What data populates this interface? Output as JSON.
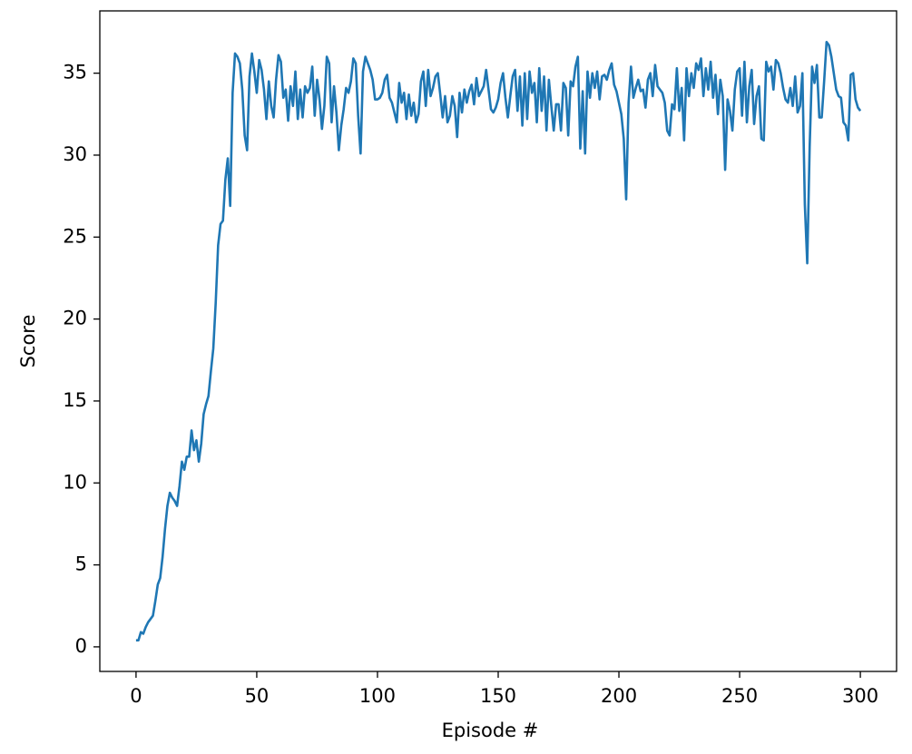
{
  "chart_data": {
    "type": "line",
    "x_label": "Episode #",
    "y_label": "Score",
    "x": [
      0,
      1,
      2,
      3,
      4,
      5,
      6,
      7,
      8,
      9,
      10,
      11,
      12,
      13,
      14,
      15,
      16,
      17,
      18,
      19,
      20,
      21,
      22,
      23,
      24,
      25,
      26,
      27,
      28,
      29,
      30,
      31,
      32,
      33,
      34,
      35,
      36,
      37,
      38,
      39,
      40,
      41,
      42,
      43,
      44,
      45,
      46,
      47,
      48,
      49,
      50,
      51,
      52,
      53,
      54,
      55,
      56,
      57,
      58,
      59,
      60,
      61,
      62,
      63,
      64,
      65,
      66,
      67,
      68,
      69,
      70,
      71,
      72,
      73,
      74,
      75,
      76,
      77,
      78,
      79,
      80,
      81,
      82,
      83,
      84,
      85,
      86,
      87,
      88,
      89,
      90,
      91,
      92,
      93,
      94,
      95,
      96,
      97,
      98,
      99,
      100,
      101,
      102,
      103,
      104,
      105,
      106,
      107,
      108,
      109,
      110,
      111,
      112,
      113,
      114,
      115,
      116,
      117,
      118,
      119,
      120,
      121,
      122,
      123,
      124,
      125,
      126,
      127,
      128,
      129,
      130,
      131,
      132,
      133,
      134,
      135,
      136,
      137,
      138,
      139,
      140,
      141,
      142,
      143,
      144,
      145,
      146,
      147,
      148,
      149,
      150,
      151,
      152,
      153,
      154,
      155,
      156,
      157,
      158,
      159,
      160,
      161,
      162,
      163,
      164,
      165,
      166,
      167,
      168,
      169,
      170,
      171,
      172,
      173,
      174,
      175,
      176,
      177,
      178,
      179,
      180,
      181,
      182,
      183,
      184,
      185,
      186,
      187,
      188,
      189,
      190,
      191,
      192,
      193,
      194,
      195,
      196,
      197,
      198,
      199,
      200,
      201,
      202,
      203,
      204,
      205,
      206,
      207,
      208,
      209,
      210,
      211,
      212,
      213,
      214,
      215,
      216,
      217,
      218,
      219,
      220,
      221,
      222,
      223,
      224,
      225,
      226,
      227,
      228,
      229,
      230,
      231,
      232,
      233,
      234,
      235,
      236,
      237,
      238,
      239,
      240,
      241,
      242,
      243,
      244,
      245,
      246,
      247,
      248,
      249,
      250,
      251,
      252,
      253,
      254,
      255,
      256,
      257,
      258,
      259,
      260,
      261,
      262,
      263,
      264,
      265,
      266,
      267,
      268,
      269,
      270,
      271,
      272,
      273,
      274,
      275,
      276,
      277,
      278,
      279,
      280,
      281,
      282,
      283,
      284,
      285,
      286,
      287,
      288,
      289,
      290,
      291,
      292,
      293,
      294,
      295,
      296,
      297,
      298,
      299,
      300
    ],
    "series": [
      {
        "color": "#1f77b4",
        "values": [
          0.4,
          0.4,
          0.9,
          0.8,
          1.2,
          1.5,
          1.7,
          1.9,
          2.8,
          3.8,
          4.2,
          5.5,
          7.2,
          8.6,
          9.4,
          9.1,
          8.9,
          8.6,
          9.8,
          11.3,
          10.8,
          11.6,
          11.6,
          13.2,
          12.0,
          12.6,
          11.3,
          12.4,
          14.2,
          14.8,
          15.3,
          16.8,
          18.2,
          21.0,
          24.5,
          25.8,
          26.0,
          28.5,
          29.8,
          26.9,
          33.8,
          36.2,
          36.0,
          35.6,
          34.0,
          31.2,
          30.3,
          34.8,
          36.2,
          35.1,
          33.8,
          35.8,
          35.2,
          34.0,
          32.2,
          34.5,
          33.0,
          32.3,
          34.6,
          36.1,
          35.7,
          33.5,
          34.0,
          32.1,
          34.2,
          33.0,
          35.1,
          32.2,
          34.0,
          32.3,
          34.2,
          33.8,
          34.1,
          35.4,
          32.4,
          34.6,
          33.4,
          31.6,
          33.0,
          36.0,
          35.6,
          32.0,
          34.2,
          32.6,
          30.3,
          31.8,
          32.8,
          34.1,
          33.8,
          34.5,
          35.9,
          35.6,
          32.4,
          30.1,
          35.1,
          36.0,
          35.6,
          35.2,
          34.6,
          33.4,
          33.4,
          33.5,
          33.8,
          34.6,
          34.9,
          33.5,
          33.2,
          32.6,
          32.0,
          34.4,
          33.2,
          33.8,
          32.2,
          33.7,
          32.4,
          33.2,
          32.0,
          32.5,
          34.5,
          35.1,
          33.0,
          35.2,
          33.6,
          34.1,
          34.8,
          35.0,
          33.7,
          32.3,
          33.6,
          32.0,
          32.4,
          33.6,
          33.0,
          31.1,
          33.8,
          32.6,
          34.0,
          33.2,
          33.9,
          34.3,
          33.1,
          34.7,
          33.6,
          33.9,
          34.2,
          35.2,
          34.0,
          32.8,
          32.6,
          32.9,
          33.4,
          34.4,
          35.0,
          33.5,
          32.3,
          33.6,
          34.8,
          35.2,
          32.7,
          34.8,
          31.8,
          35.0,
          32.2,
          35.1,
          33.8,
          34.4,
          32.0,
          35.3,
          32.7,
          34.8,
          31.5,
          34.6,
          33.0,
          31.5,
          33.1,
          33.1,
          31.5,
          34.4,
          34.1,
          31.2,
          34.5,
          34.2,
          35.4,
          36.0,
          30.4,
          33.9,
          30.1,
          35.1,
          33.5,
          35.0,
          34.1,
          35.1,
          33.4,
          34.8,
          34.9,
          34.6,
          35.2,
          35.6,
          34.3,
          33.9,
          33.2,
          32.5,
          31.0,
          27.3,
          33.2,
          35.4,
          33.5,
          34.1,
          34.6,
          33.9,
          34.0,
          32.9,
          34.6,
          35.0,
          33.6,
          35.5,
          34.2,
          34.0,
          33.8,
          33.2,
          31.5,
          31.2,
          33.1,
          32.8,
          35.3,
          32.7,
          34.1,
          30.9,
          35.3,
          33.6,
          35.0,
          34.1,
          35.6,
          35.2,
          35.9,
          33.6,
          35.3,
          34.0,
          35.7,
          33.5,
          34.9,
          32.5,
          34.6,
          33.6,
          29.1,
          33.4,
          32.7,
          31.5,
          34.0,
          35.1,
          35.3,
          32.4,
          35.7,
          32.0,
          34.2,
          35.2,
          31.9,
          33.6,
          34.2,
          31.0,
          30.9,
          35.7,
          35.1,
          35.4,
          34.0,
          35.8,
          35.6,
          35.0,
          34.1,
          33.4,
          33.2,
          34.1,
          33.0,
          34.8,
          32.6,
          33.0,
          35.0,
          27.0,
          23.4,
          30.5,
          35.4,
          34.4,
          35.5,
          32.3,
          32.3,
          34.5,
          36.9,
          36.7,
          36.0,
          35.0,
          34.0,
          33.6,
          33.5,
          32.0,
          31.8,
          30.9,
          34.9,
          35.0,
          33.4,
          32.9,
          32.7
        ]
      }
    ],
    "xlim": [
      -15,
      315
    ],
    "ylim": [
      -1.5,
      38.8
    ],
    "xticks": [
      0,
      50,
      100,
      150,
      200,
      250,
      300
    ],
    "yticks": [
      0,
      5,
      10,
      15,
      20,
      25,
      30,
      35
    ],
    "grid": false
  }
}
